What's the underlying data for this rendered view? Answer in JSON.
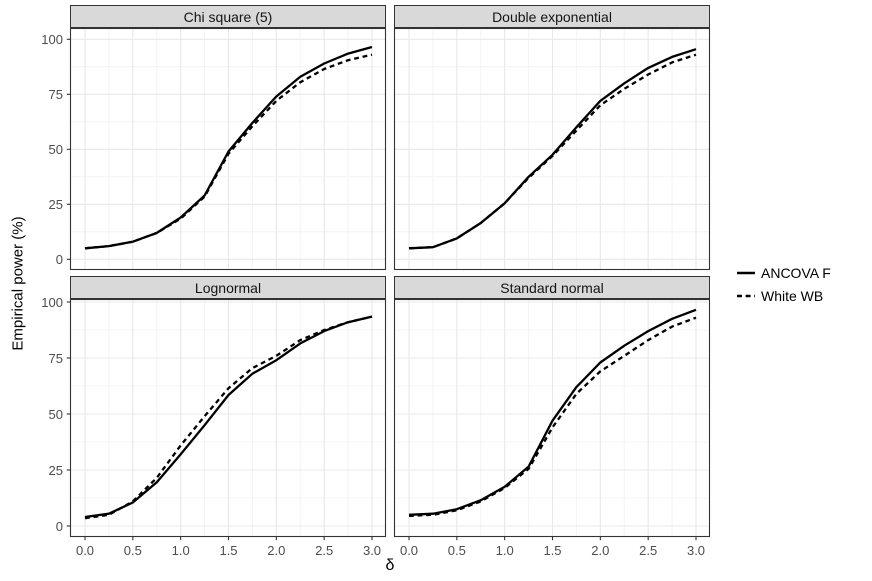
{
  "chart_data": {
    "type": "line",
    "title": "",
    "xlabel": "δ",
    "ylabel": "Empirical power (%)",
    "xlim": [
      0.0,
      3.0
    ],
    "ylim": [
      0,
      100
    ],
    "grid": "on",
    "x_ticks": [
      0.0,
      0.5,
      1.0,
      1.5,
      2.0,
      2.5,
      3.0
    ],
    "x_tick_labels": [
      "0.0",
      "0.5",
      "1.0",
      "1.5",
      "2.0",
      "2.5",
      "3.0"
    ],
    "x_minor_ticks": [
      0.25,
      0.75,
      1.25,
      1.75,
      2.25,
      2.75
    ],
    "y_ticks": [
      0,
      25,
      50,
      75,
      100
    ],
    "y_tick_labels": [
      "0",
      "25",
      "50",
      "75",
      "100"
    ],
    "y_minor_ticks": [
      12.5,
      37.5,
      62.5,
      87.5
    ],
    "x": [
      0.0,
      0.25,
      0.5,
      0.75,
      1.0,
      1.25,
      1.5,
      1.75,
      2.0,
      2.25,
      2.5,
      2.75,
      3.0
    ],
    "facets": [
      {
        "title": "Chi square (5)",
        "series": [
          {
            "name": "ANCOVA F",
            "linestyle": "solid",
            "values": [
              5,
              6,
              8,
              12,
              19,
              29,
              49,
              62,
              74,
              83,
              89,
              93.5,
              96.5
            ]
          },
          {
            "name": "White WB",
            "linestyle": "dashed",
            "values": [
              5,
              6,
              8,
              12,
              18.5,
              28.5,
              48,
              60.5,
              72,
              80.5,
              86.5,
              90.5,
              93
            ]
          }
        ]
      },
      {
        "title": "Double exponential",
        "series": [
          {
            "name": "ANCOVA F",
            "linestyle": "solid",
            "values": [
              5,
              5.5,
              9.5,
              16.5,
              25.5,
              37.5,
              47.5,
              60,
              72,
              80,
              87,
              92,
              95.5
            ]
          },
          {
            "name": "White WB",
            "linestyle": "dashed",
            "values": [
              5,
              5.5,
              9.5,
              16.5,
              25.5,
              37,
              47,
              58.5,
              70,
              77.5,
              84,
              89.5,
              93
            ]
          }
        ]
      },
      {
        "title": "Lognormal",
        "series": [
          {
            "name": "ANCOVA F",
            "linestyle": "solid",
            "values": [
              4,
              5.5,
              10.5,
              19.5,
              32,
              45,
              58.5,
              68,
              74,
              81.5,
              87,
              91,
              93.5
            ]
          },
          {
            "name": "White WB",
            "linestyle": "dashed",
            "values": [
              3.5,
              5,
              11,
              21.5,
              36,
              49,
              61.5,
              70.5,
              76,
              83,
              87.5,
              91,
              93.5
            ]
          }
        ]
      },
      {
        "title": "Standard normal",
        "series": [
          {
            "name": "ANCOVA F",
            "linestyle": "solid",
            "values": [
              5,
              5.5,
              7.5,
              11.5,
              17.5,
              26.5,
              47,
              62,
              73,
              80.5,
              87,
              92.5,
              96.5
            ]
          },
          {
            "name": "White WB",
            "linestyle": "dashed",
            "values": [
              4.5,
              5,
              7,
              11,
              17,
              25.5,
              44,
              59,
              69,
              76,
              83,
              89,
              93
            ]
          }
        ]
      }
    ],
    "legend": {
      "position": "right",
      "entries": [
        {
          "label": "ANCOVA F",
          "linestyle": "solid"
        },
        {
          "label": "White WB",
          "linestyle": "dashed"
        }
      ]
    },
    "colors": {
      "line": "#000000",
      "strip_background": "#d9d9d9",
      "panel_border": "#333333",
      "grid_major": "#e8e8e8",
      "grid_minor": "#f4f4f4",
      "tick_text": "#4d4d4d"
    }
  }
}
